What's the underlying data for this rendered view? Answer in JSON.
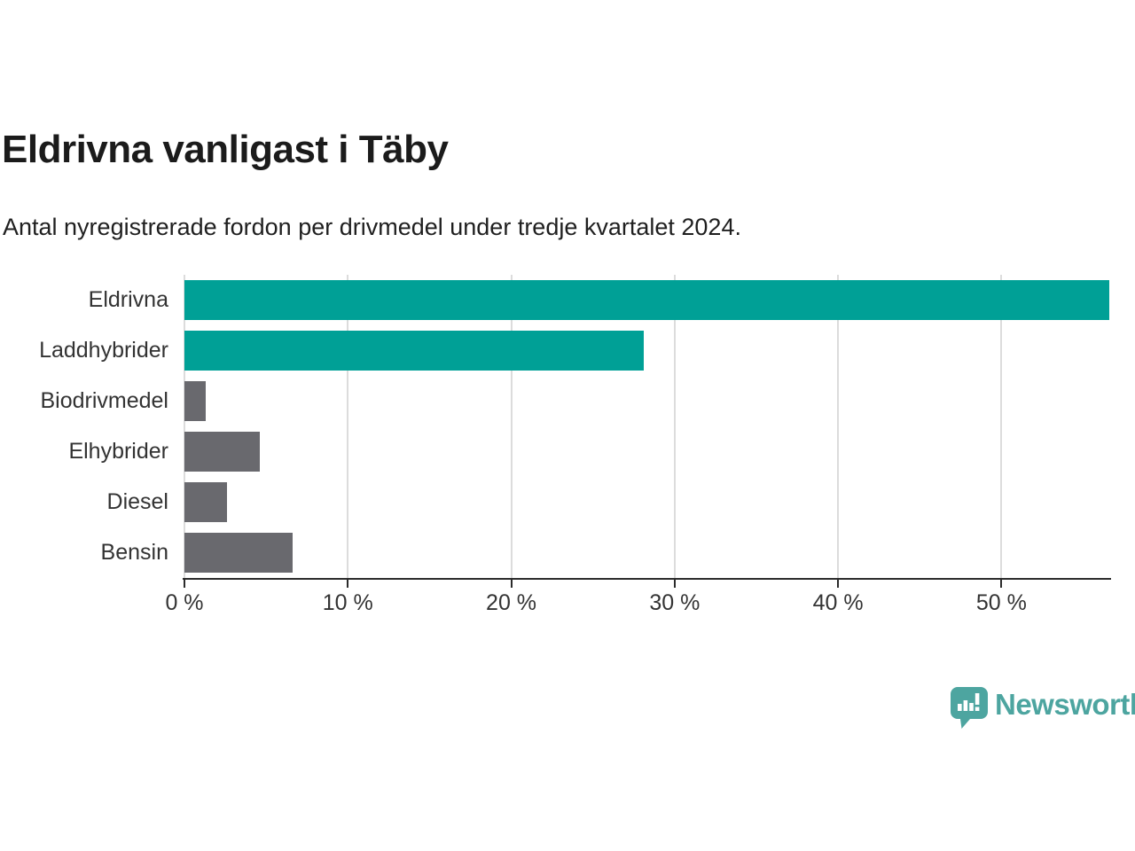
{
  "header": {
    "title": "Eldrivna vanligast i Täby",
    "subtitle": "Antal nyregistrerade fordon per drivmedel under tredje kvartalet 2024."
  },
  "chart_data": {
    "type": "bar",
    "orientation": "horizontal",
    "categories": [
      "Eldrivna",
      "Laddhybrider",
      "Biodrivmedel",
      "Elhybrider",
      "Diesel",
      "Bensin"
    ],
    "values": [
      56.6,
      28.1,
      1.3,
      4.6,
      2.6,
      6.6
    ],
    "unit": "%",
    "title": "Eldrivna vanligast i Täby",
    "subtitle": "Antal nyregistrerade fordon per drivmedel under tredje kvartalet 2024.",
    "xlabel": "",
    "ylabel": "",
    "xlim": [
      0,
      56.6
    ],
    "x_ticks": [
      0,
      10,
      20,
      30,
      40,
      50
    ],
    "x_tick_labels": [
      "0 %",
      "10 %",
      "20 %",
      "30 %",
      "40 %",
      "50 %"
    ],
    "grid": "vertical",
    "legend": "none",
    "bar_colors": [
      "#00a096",
      "#00a096",
      "#69696e",
      "#69696e",
      "#69696e",
      "#69696e"
    ],
    "highlight_color": "#00a096",
    "default_color": "#69696e"
  },
  "colors": {
    "background": "#ffffff",
    "title_text": "#1b1b1b",
    "axis_text": "#333333",
    "axis_line": "#2b2b2b",
    "gridline": "#dcdcdc",
    "brand_teal": "#4da5a0"
  },
  "footer": {
    "brand_name": "Newsworthy",
    "brand_icon": "speech-bubble-bar-chart-icon"
  }
}
